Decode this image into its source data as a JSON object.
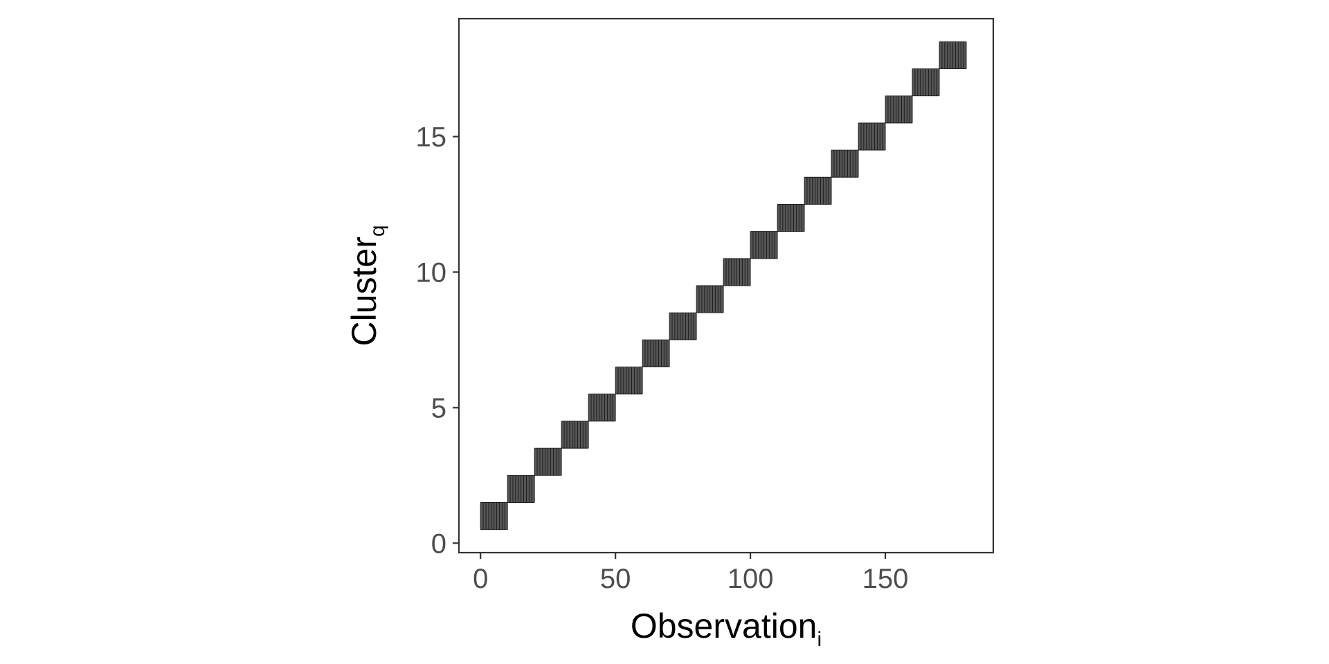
{
  "chart_data": {
    "type": "heatmap",
    "title": "",
    "xlabel": {
      "main": "Observation",
      "sub": "i"
    },
    "ylabel": {
      "main": "Cluster",
      "sub": "q"
    },
    "xlim": [
      -8,
      190
    ],
    "ylim": [
      -0.35,
      19.35
    ],
    "x_ticks": [
      0,
      50,
      100,
      150
    ],
    "y_ticks": [
      0,
      5,
      10,
      15
    ],
    "cell_color": "#555555",
    "cell_line_color": "#1a1a1a",
    "grid": false,
    "blocks": [
      {
        "cluster": 1,
        "x_start": 0,
        "x_end": 10
      },
      {
        "cluster": 2,
        "x_start": 10,
        "x_end": 20
      },
      {
        "cluster": 3,
        "x_start": 20,
        "x_end": 30
      },
      {
        "cluster": 4,
        "x_start": 30,
        "x_end": 40
      },
      {
        "cluster": 5,
        "x_start": 40,
        "x_end": 50
      },
      {
        "cluster": 6,
        "x_start": 50,
        "x_end": 60
      },
      {
        "cluster": 7,
        "x_start": 60,
        "x_end": 70
      },
      {
        "cluster": 8,
        "x_start": 70,
        "x_end": 80
      },
      {
        "cluster": 9,
        "x_start": 80,
        "x_end": 90
      },
      {
        "cluster": 10,
        "x_start": 90,
        "x_end": 100
      },
      {
        "cluster": 11,
        "x_start": 100,
        "x_end": 110
      },
      {
        "cluster": 12,
        "x_start": 110,
        "x_end": 120
      },
      {
        "cluster": 13,
        "x_start": 120,
        "x_end": 130
      },
      {
        "cluster": 14,
        "x_start": 130,
        "x_end": 140
      },
      {
        "cluster": 15,
        "x_start": 140,
        "x_end": 150
      },
      {
        "cluster": 16,
        "x_start": 150,
        "x_end": 160
      },
      {
        "cluster": 17,
        "x_start": 160,
        "x_end": 170
      },
      {
        "cluster": 18,
        "x_start": 170,
        "x_end": 180
      }
    ]
  }
}
